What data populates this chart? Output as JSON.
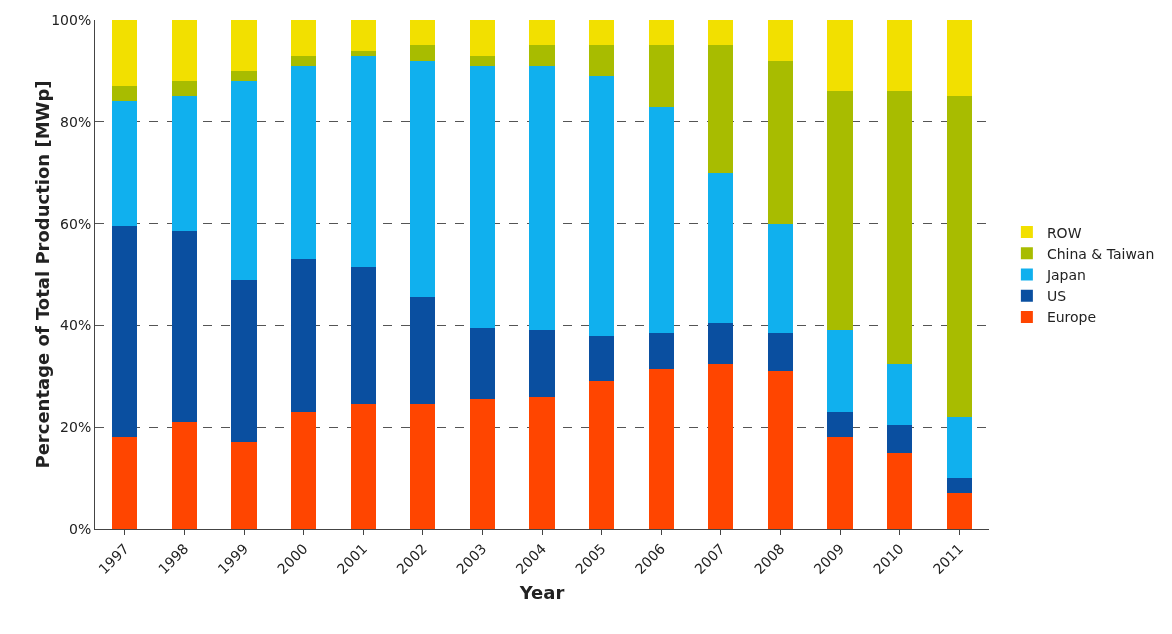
{
  "chart_data": {
    "type": "bar",
    "stacked": true,
    "xlabel": "Year",
    "ylabel": "Percentage of Total Production [MWp]",
    "categories": [
      "1997",
      "1998",
      "1999",
      "2000",
      "2001",
      "2002",
      "2003",
      "2004",
      "2005",
      "2006",
      "2007",
      "2008",
      "2009",
      "2010",
      "2011"
    ],
    "ylim": [
      0,
      100
    ],
    "yticks": [
      {
        "value": 0,
        "label": "0%"
      },
      {
        "value": 20,
        "label": "20%"
      },
      {
        "value": 40,
        "label": "40%"
      },
      {
        "value": 60,
        "label": "60%"
      },
      {
        "value": 80,
        "label": "80%"
      },
      {
        "value": 100,
        "label": "100%"
      }
    ],
    "grid": "y",
    "legend": "right",
    "series": [
      {
        "name": "Europe",
        "color": "#ff4500",
        "values": [
          18,
          21,
          17,
          23,
          24.5,
          24.5,
          25.5,
          26,
          29,
          31.5,
          32.5,
          31,
          18,
          15,
          7
        ]
      },
      {
        "name": "US",
        "color": "#0a4fa0",
        "values": [
          41.5,
          37.5,
          32,
          30,
          27,
          21,
          14,
          13,
          9,
          7,
          8,
          7.5,
          5,
          5.5,
          3
        ]
      },
      {
        "name": "Japan",
        "color": "#10b0ee",
        "values": [
          24.5,
          26.5,
          39,
          38,
          41.5,
          46.5,
          51.5,
          52,
          51,
          44.5,
          29.5,
          21.5,
          16,
          12,
          12
        ]
      },
      {
        "name": "China & Taiwan",
        "color": "#a8bc00",
        "values": [
          3,
          3,
          2,
          2,
          1,
          3,
          2,
          4,
          6,
          12,
          25,
          32,
          47,
          53.5,
          63
        ]
      },
      {
        "name": "ROW",
        "color": "#f2e000",
        "values": [
          13,
          12,
          10,
          7,
          6,
          5,
          7,
          5,
          5,
          5,
          5,
          8,
          14,
          14,
          15
        ]
      }
    ]
  }
}
